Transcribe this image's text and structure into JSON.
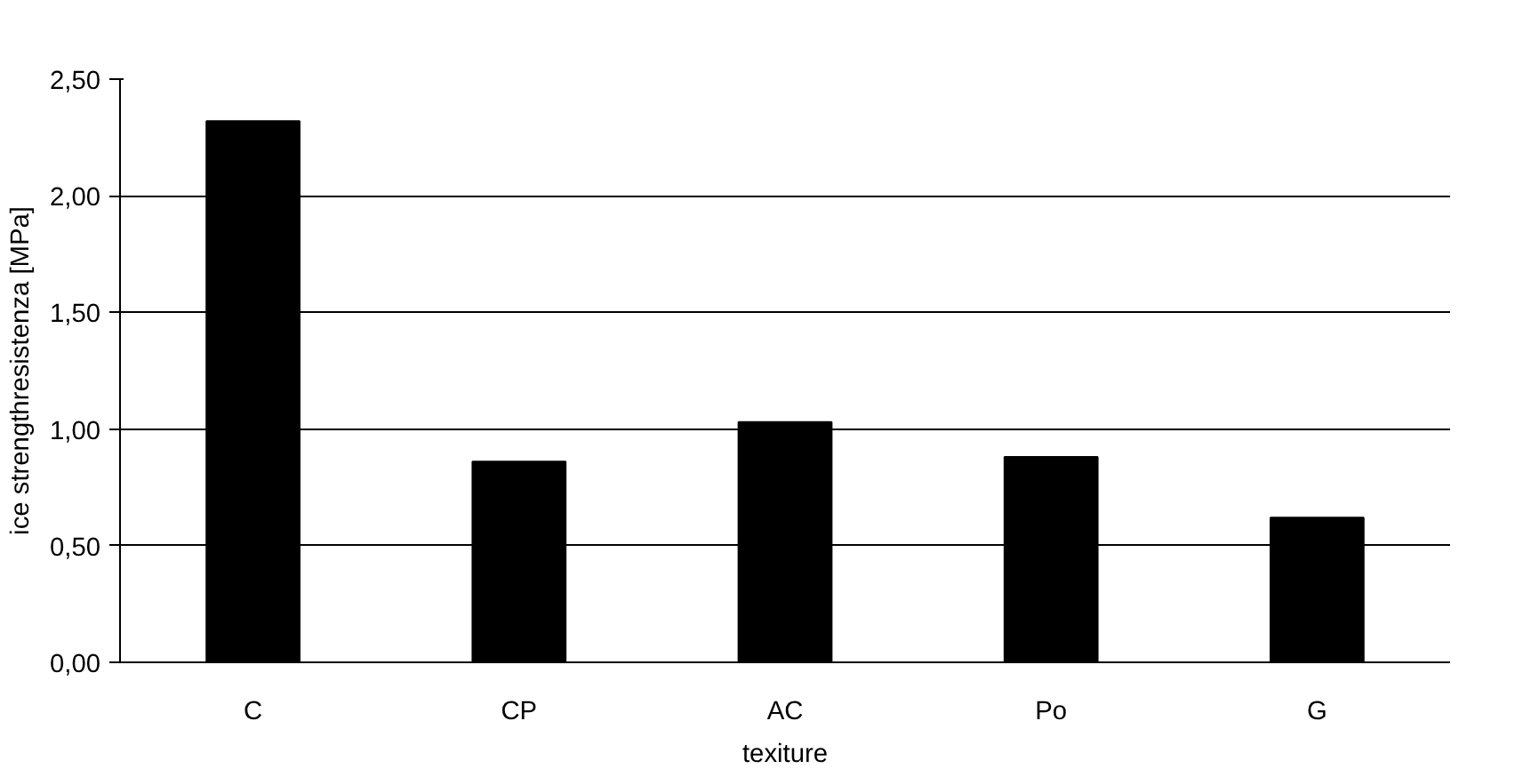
{
  "chart_data": {
    "type": "bar",
    "xlabel": "texiture",
    "ylabel": "ice strengthresistenza [MPa]",
    "categories": [
      "C",
      "CP",
      "AC",
      "Po",
      "G"
    ],
    "values": [
      2.32,
      0.86,
      1.03,
      0.88,
      0.62
    ],
    "color": "#000000",
    "ylim": [
      0,
      2.5
    ],
    "yticks": [
      {
        "value": 0,
        "label": "0,00"
      },
      {
        "value": 0.5,
        "label": "0,50"
      },
      {
        "value": 1,
        "label": "1,00"
      },
      {
        "value": 1.5,
        "label": "1,50"
      },
      {
        "value": 2,
        "label": "2,00"
      },
      {
        "value": 2.5,
        "label": "2,50"
      }
    ],
    "grid": "y"
  }
}
